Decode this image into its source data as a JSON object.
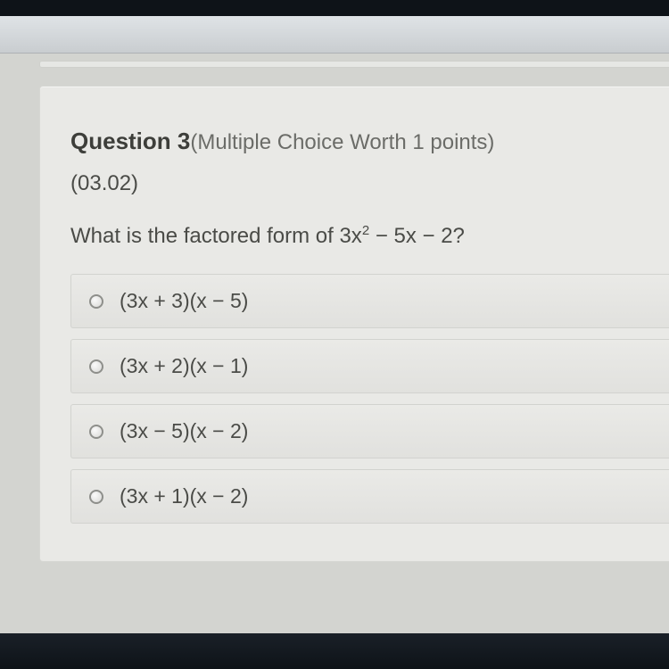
{
  "question": {
    "label_prefix": "Question ",
    "number": "3",
    "meta": "(Multiple Choice Worth 1 points)",
    "section_code": "(03.02)",
    "prompt_before": "What is the factored form of 3x",
    "prompt_exp": "2",
    "prompt_after": " − 5x − 2?"
  },
  "choices": [
    {
      "label": "(3x + 3)(x − 5)"
    },
    {
      "label": "(3x + 2)(x − 1)"
    },
    {
      "label": "(3x − 5)(x − 2)"
    },
    {
      "label": "(3x + 1)(x − 2)"
    }
  ],
  "colors": {
    "page_bg": "#d3d4d0",
    "card_bg": "#e9e9e6",
    "choice_bg": "#e5e5e2",
    "border": "#d2d3cf",
    "text": "#4a4b47"
  }
}
